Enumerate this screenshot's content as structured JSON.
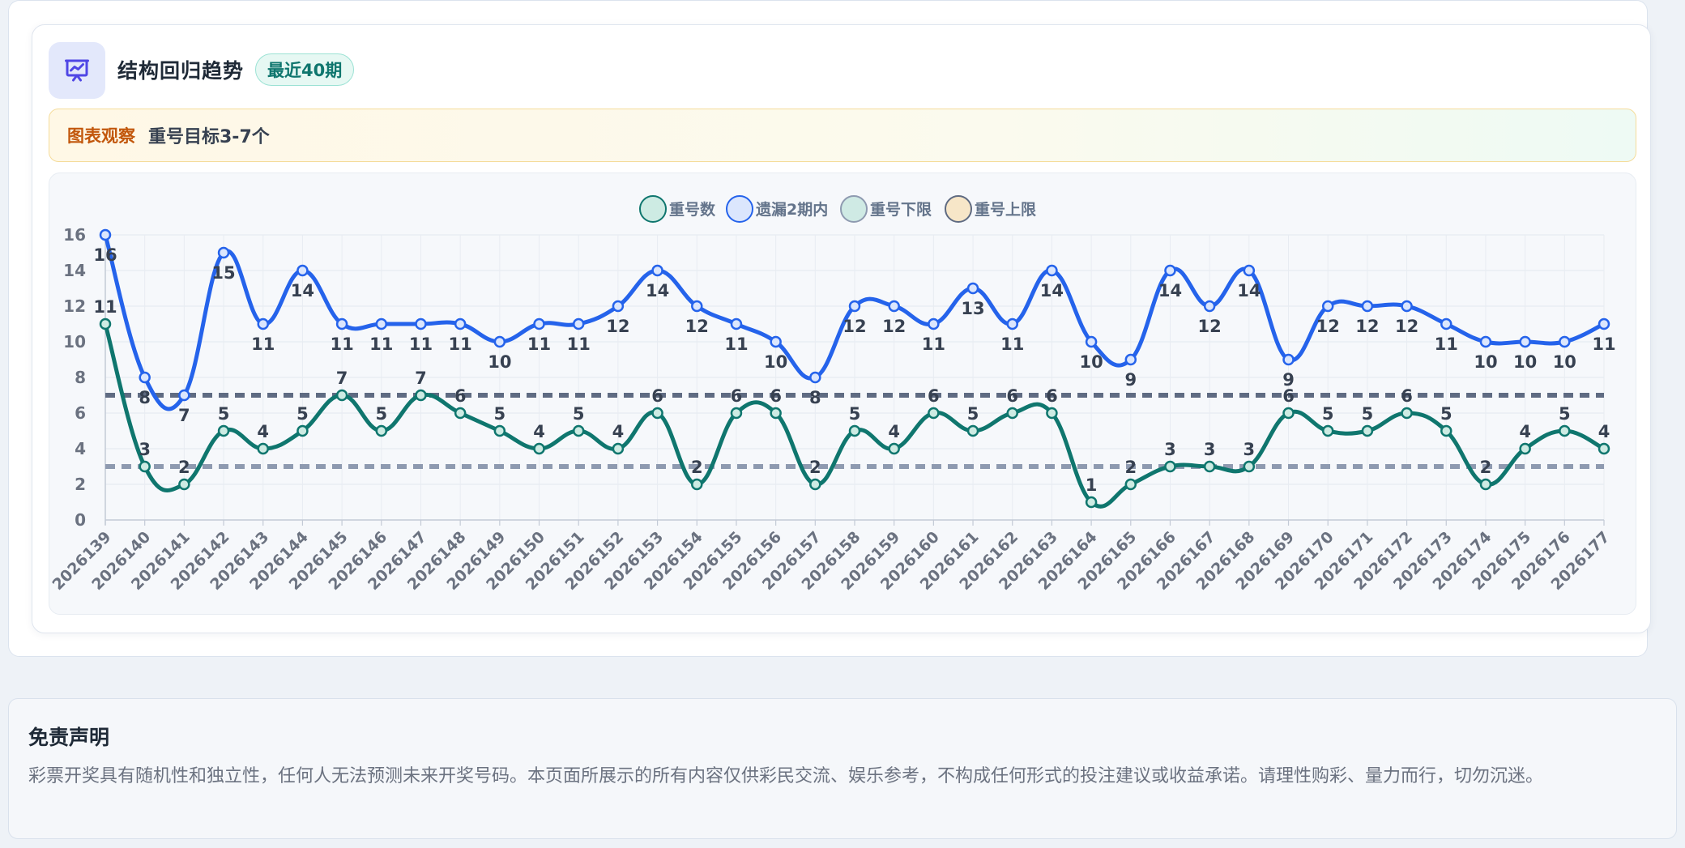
{
  "card": {
    "title": "结构回归趋势",
    "badge": "最近40期",
    "icon": "presentation-chart-icon"
  },
  "observation": {
    "label": "图表观察",
    "text": "重号目标3-7个"
  },
  "chart_data": {
    "type": "line",
    "categories": [
      "2026139",
      "2026140",
      "2026141",
      "2026142",
      "2026143",
      "2026144",
      "2026145",
      "2026146",
      "2026147",
      "2026148",
      "2026149",
      "2026150",
      "2026151",
      "2026152",
      "2026153",
      "2026154",
      "2026155",
      "2026156",
      "2026157",
      "2026158",
      "2026159",
      "2026160",
      "2026161",
      "2026162",
      "2026163",
      "2026164",
      "2026165",
      "2026166",
      "2026167",
      "2026168",
      "2026169",
      "2026170",
      "2026171",
      "2026172",
      "2026173",
      "2026174",
      "2026175",
      "2026176",
      "2026177"
    ],
    "series": [
      {
        "name": "重号数",
        "color": "#0f766e",
        "values": [
          11,
          3,
          2,
          5,
          4,
          5,
          7,
          5,
          7,
          6,
          5,
          4,
          5,
          4,
          6,
          2,
          6,
          6,
          2,
          5,
          4,
          6,
          5,
          6,
          6,
          1,
          2,
          3,
          3,
          3,
          6,
          5,
          5,
          6,
          5,
          2,
          4,
          5,
          4
        ]
      },
      {
        "name": "遗漏2期内",
        "color": "#2563eb",
        "values": [
          16,
          8,
          7,
          15,
          11,
          14,
          11,
          11,
          11,
          11,
          10,
          11,
          11,
          12,
          14,
          12,
          11,
          10,
          8,
          12,
          12,
          11,
          13,
          11,
          14,
          10,
          9,
          14,
          12,
          14,
          9,
          12,
          12,
          12,
          11,
          10,
          10,
          10,
          11
        ]
      }
    ],
    "reference_lines": [
      {
        "name": "重号下限",
        "value": 3,
        "color": "#8e9ab0"
      },
      {
        "name": "重号上限",
        "value": 7,
        "color": "#5f6b82"
      }
    ],
    "legend": [
      {
        "name": "重号数",
        "fill": "#cdebe3",
        "stroke": "#0f766e"
      },
      {
        "name": "遗漏2期内",
        "fill": "#dbe6fd",
        "stroke": "#2563eb"
      },
      {
        "name": "重号下限",
        "fill": "#cfeae4",
        "stroke": "#8e9ab0"
      },
      {
        "name": "重号上限",
        "fill": "#f7e6c8",
        "stroke": "#5f6b82"
      }
    ],
    "legend_position": "top-center",
    "yticks": [
      0,
      2,
      4,
      6,
      8,
      10,
      12,
      14,
      16
    ],
    "ylim": [
      0,
      16
    ],
    "grid": true
  },
  "disclaimer": {
    "title": "免责声明",
    "text": "彩票开奖具有随机性和独立性，任何人无法预测未来开奖号码。本页面所展示的所有内容仅供彩民交流、娱乐参考，不构成任何形式的投注建议或收益承诺。请理性购彩、量力而行，切勿沉迷。"
  }
}
